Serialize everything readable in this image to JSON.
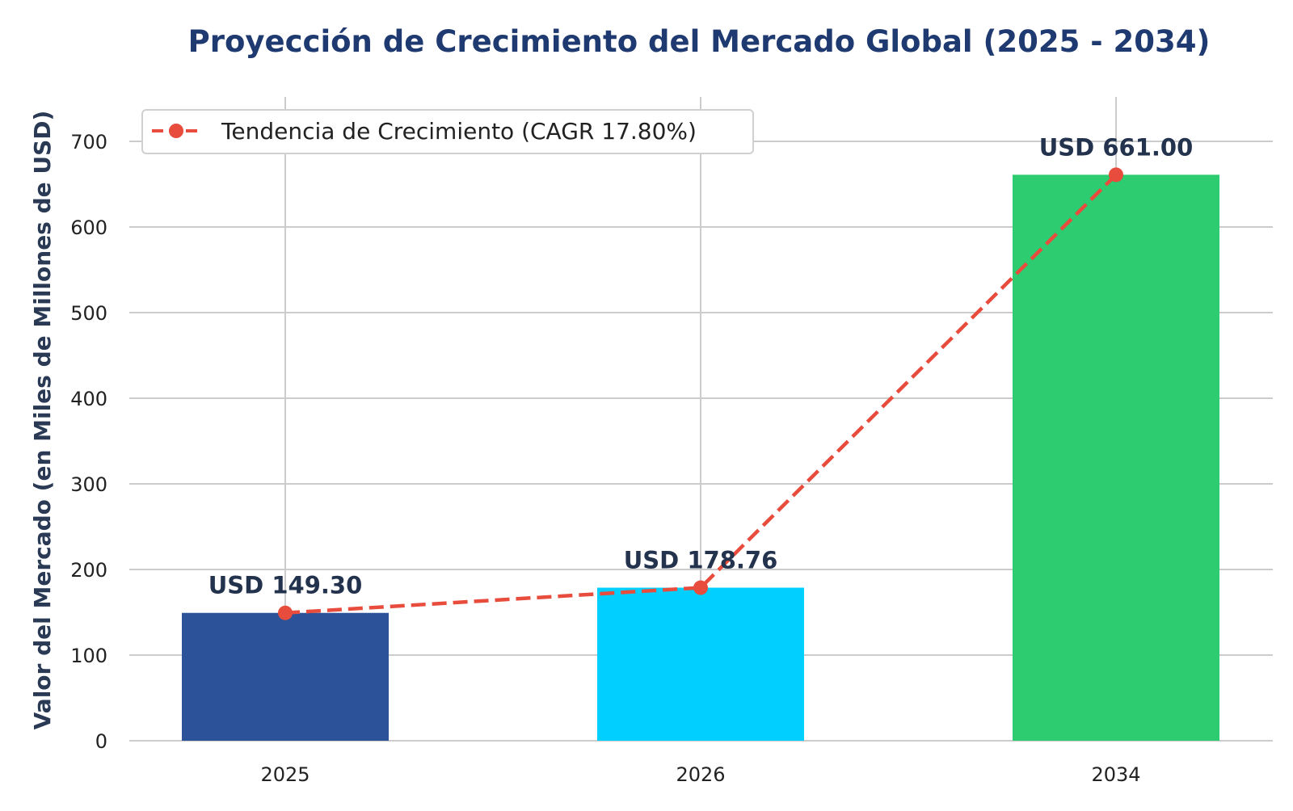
{
  "chart_data": {
    "type": "bar",
    "title": "Proyección de Crecimiento del Mercado Global (2025 - 2034)",
    "xlabel": "",
    "ylabel": "Valor del Mercado (en Miles de Millones de USD)",
    "categories": [
      "2025",
      "2026",
      "2034"
    ],
    "values": [
      149.3,
      178.76,
      661.0
    ],
    "value_labels": [
      "USD 149.30",
      "USD 178.76",
      "USD 661.00"
    ],
    "bar_colors": [
      "#2c5299",
      "#00cfff",
      "#2ecc71"
    ],
    "ylim": [
      0,
      750
    ],
    "yticks": [
      0,
      100,
      200,
      300,
      400,
      500,
      600,
      700
    ],
    "grid": true,
    "series": [
      {
        "name": "Tendencia de Crecimiento (CAGR 17.80%)",
        "type": "line",
        "style": "dashed",
        "marker": "circle",
        "color": "#e74c3c",
        "values": [
          149.3,
          178.76,
          661.0
        ]
      }
    ],
    "legend": {
      "placement": "top-left",
      "entries": [
        "Tendencia de Crecimiento (CAGR 17.80%)"
      ]
    },
    "colors": {
      "title": "#1f3a70",
      "axis_label": "#2a3a55",
      "value_label": "#23324d",
      "tick_label": "#222222",
      "grid": "#cccccc"
    }
  }
}
